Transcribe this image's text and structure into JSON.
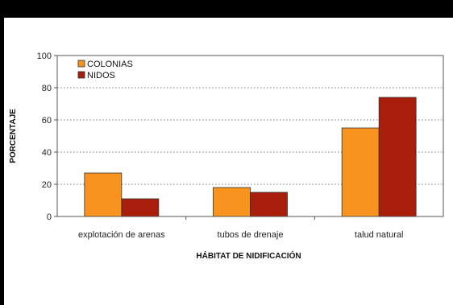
{
  "chart_data": {
    "type": "bar",
    "categories": [
      "explotación de arenas",
      "tubos de drenaje",
      "talud natural"
    ],
    "series": [
      {
        "name": "COLONIAS",
        "values": [
          27,
          18,
          55
        ],
        "color": "#f7931e"
      },
      {
        "name": "NIDOS",
        "values": [
          11,
          15,
          74
        ],
        "color": "#a81e0a"
      }
    ],
    "xlabel": "HÁBITAT DE NIDIFICACIÓN",
    "ylabel": "PORCENTAJE",
    "ylim": [
      0,
      100
    ],
    "yticks": [
      0,
      20,
      40,
      60,
      80,
      100
    ],
    "grid": "horizontal dotted",
    "legend_position": "top-left"
  }
}
